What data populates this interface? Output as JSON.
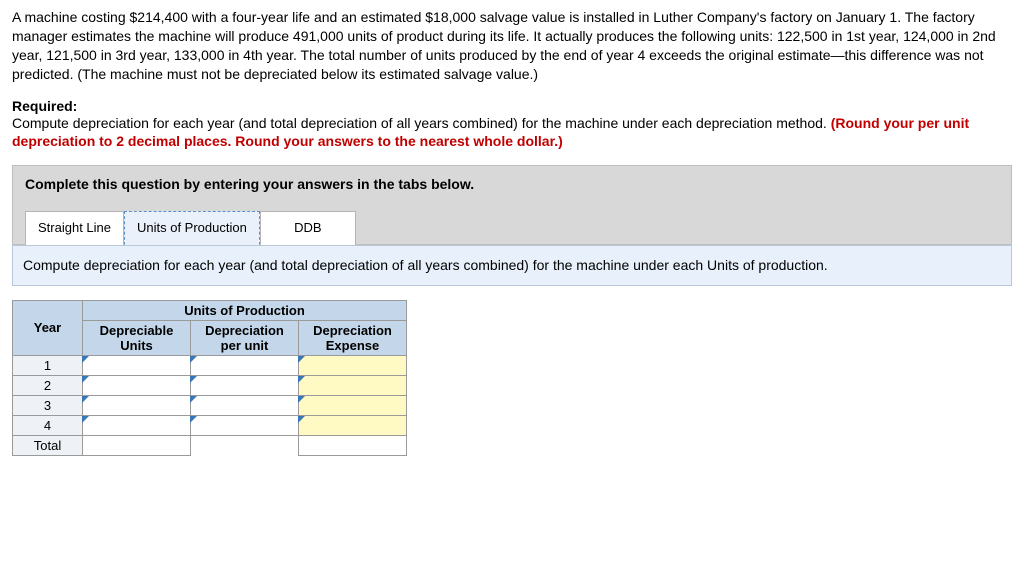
{
  "problem": {
    "paragraph": "A machine costing $214,400 with a four-year life and an estimated $18,000 salvage value is installed in Luther Company's factory on January 1. The factory manager estimates the machine will produce 491,000 units of product during its life. It actually produces the following units: 122,500 in 1st year, 124,000 in 2nd year, 121,500 in 3rd year, 133,000 in 4th year. The total number of units produced by the end of year 4 exceeds the original estimate—this difference was not predicted. (The machine must not be depreciated below its estimated salvage value.)",
    "required_label": "Required:",
    "required_text": "Compute depreciation for each year (and total depreciation of all years combined) for the machine under each depreciation method.",
    "round_hint": "(Round your per unit depreciation to 2 decimal places. Round your answers to the nearest whole dollar.)"
  },
  "tabs": {
    "instruction": "Complete this question by entering your answers in the tabs below.",
    "items": [
      {
        "label": "Straight Line"
      },
      {
        "label": "Units of Production"
      },
      {
        "label": "DDB"
      }
    ],
    "active_index": 1,
    "panel_text": "Compute depreciation for each year (and total depreciation of all years combined) for the machine under each Units of production."
  },
  "table": {
    "superheader": "Units of Production",
    "headers": {
      "year": "Year",
      "depr_units": "Depreciable Units",
      "depr_per_unit": "Depreciation per unit",
      "depr_expense": "Depreciation Expense"
    },
    "rows": [
      {
        "year": "1"
      },
      {
        "year": "2"
      },
      {
        "year": "3"
      },
      {
        "year": "4"
      },
      {
        "year": "Total"
      }
    ]
  },
  "style": {
    "header_bg": "#c4d6ea",
    "panel_bg": "#e7f0fb",
    "tabs_bg": "#d8d8d8",
    "highlight_cell": "#fff9c4",
    "red_text": "#c00000",
    "tick_color": "#3a77b6"
  }
}
